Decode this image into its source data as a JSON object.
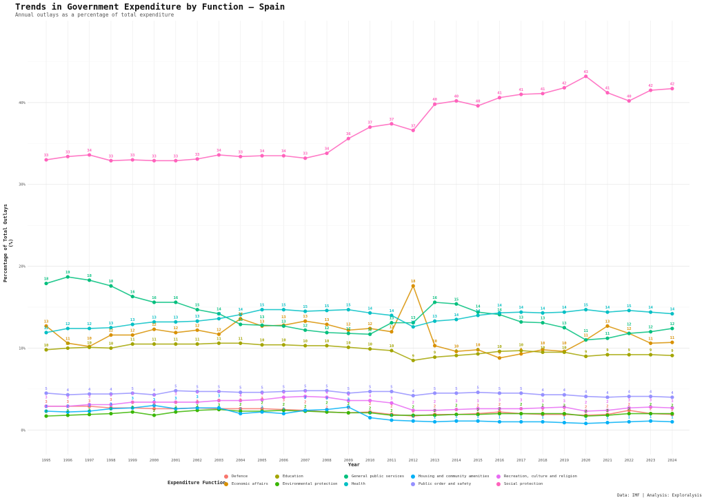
{
  "chart_data": {
    "type": "line",
    "title": "Trends in Government Expenditure by Function — Spain",
    "subtitle": "Annual outlays as a percentage of total expenditure",
    "xlabel": "Year",
    "ylabel": "Percentage of Total Outlays (%)",
    "caption": "Data: IMF | Analysis: Exploralysis",
    "legend_title": "Expenditure Function",
    "legend_position": "bottom",
    "ylim": [
      -3,
      50
    ],
    "yticks": [
      0,
      10,
      20,
      30,
      40
    ],
    "ytick_labels": [
      "0%",
      "10%",
      "20%",
      "30%",
      "40%"
    ],
    "x": [
      1995,
      1996,
      1997,
      1998,
      1999,
      2000,
      2001,
      2002,
      2003,
      2004,
      2005,
      2006,
      2007,
      2008,
      2009,
      2010,
      2011,
      2012,
      2013,
      2014,
      2015,
      2016,
      2017,
      2018,
      2019,
      2020,
      2021,
      2022,
      2023,
      2024
    ],
    "series": [
      {
        "name": "Defence",
        "color": "#f8766d",
        "values": [
          2.9,
          2.9,
          2.9,
          2.7,
          2.7,
          2.6,
          2.6,
          2.7,
          2.6,
          2.6,
          2.6,
          2.5,
          2.4,
          2.2,
          2.1,
          2.2,
          1.9,
          1.7,
          1.9,
          1.9,
          2.0,
          2.2,
          2.0,
          1.9,
          1.9,
          1.8,
          1.9,
          2.4,
          2.0,
          1.9
        ]
      },
      {
        "name": "Economic affairs",
        "color": "#d89000",
        "values": [
          12.7,
          10.6,
          10.2,
          11.6,
          11.6,
          12.3,
          11.9,
          12.2,
          11.7,
          13.6,
          12.7,
          12.8,
          13.3,
          12.9,
          12.2,
          12.4,
          12.0,
          17.6,
          10.3,
          9.6,
          9.8,
          8.8,
          9.3,
          9.8,
          9.6,
          11.0,
          12.7,
          11.8,
          10.6,
          10.7
        ]
      },
      {
        "name": "Education",
        "color": "#a3a500",
        "values": [
          9.8,
          10.0,
          10.1,
          10.0,
          10.5,
          10.5,
          10.5,
          10.5,
          10.6,
          10.6,
          10.4,
          10.4,
          10.3,
          10.3,
          10.1,
          9.9,
          9.7,
          8.5,
          8.9,
          9.1,
          9.3,
          9.6,
          9.7,
          9.5,
          9.5,
          9.0,
          9.2,
          9.2,
          9.2,
          9.1
        ]
      },
      {
        "name": "Environmental protection",
        "color": "#39b600",
        "values": [
          1.7,
          1.8,
          1.9,
          2.0,
          2.2,
          1.8,
          2.2,
          2.4,
          2.5,
          2.3,
          2.3,
          2.4,
          2.3,
          2.2,
          2.1,
          2.1,
          1.8,
          1.8,
          1.8,
          1.9,
          1.9,
          2.0,
          2.0,
          2.0,
          2.0,
          1.7,
          1.8,
          2.0,
          2.0,
          2.0
        ]
      },
      {
        "name": "General public services",
        "color": "#00bf7d",
        "values": [
          17.9,
          18.7,
          18.3,
          17.6,
          16.3,
          15.6,
          15.6,
          14.7,
          14.2,
          12.9,
          12.8,
          12.7,
          12.2,
          11.9,
          11.8,
          11.7,
          13.1,
          13.1,
          15.6,
          15.4,
          14.4,
          14.1,
          13.2,
          13.1,
          12.5,
          11.0,
          11.2,
          11.8,
          12.0,
          12.4
        ]
      },
      {
        "name": "Health",
        "color": "#00bfc4",
        "values": [
          11.9,
          12.4,
          12.4,
          12.5,
          12.9,
          13.2,
          13.2,
          13.3,
          13.6,
          14.1,
          14.7,
          14.7,
          14.5,
          14.6,
          14.7,
          14.3,
          14.0,
          12.6,
          13.3,
          13.5,
          14.0,
          14.3,
          14.4,
          14.3,
          14.4,
          14.7,
          14.4,
          14.6,
          14.4,
          14.2
        ]
      },
      {
        "name": "Housing and community amenities",
        "color": "#00b0f6",
        "values": [
          2.3,
          2.2,
          2.3,
          2.6,
          2.7,
          3.0,
          2.6,
          2.7,
          2.7,
          2.0,
          2.2,
          2.0,
          2.4,
          2.5,
          2.8,
          1.5,
          1.2,
          1.1,
          1.0,
          1.1,
          1.1,
          1.0,
          1.0,
          1.0,
          0.9,
          0.8,
          0.9,
          1.0,
          1.1,
          1.0
        ]
      },
      {
        "name": "Public order and safety",
        "color": "#9590ff",
        "values": [
          4.5,
          4.3,
          4.4,
          4.4,
          4.5,
          4.3,
          4.8,
          4.7,
          4.7,
          4.6,
          4.6,
          4.7,
          4.8,
          4.8,
          4.5,
          4.7,
          4.7,
          4.2,
          4.5,
          4.5,
          4.6,
          4.5,
          4.5,
          4.3,
          4.3,
          4.1,
          4.0,
          4.1,
          4.1,
          4.0
        ]
      },
      {
        "name": "Recreation, culture and religion",
        "color": "#e76bf3",
        "values": [
          2.9,
          2.9,
          3.1,
          3.1,
          3.4,
          3.4,
          3.4,
          3.4,
          3.6,
          3.6,
          3.7,
          4.0,
          4.1,
          4.0,
          3.6,
          3.6,
          3.3,
          2.4,
          2.4,
          2.5,
          2.6,
          2.6,
          2.6,
          2.7,
          2.8,
          2.3,
          2.4,
          2.7,
          2.8,
          2.7
        ]
      },
      {
        "name": "Social protection",
        "color": "#ff62bc",
        "values": [
          33.0,
          33.4,
          33.6,
          32.9,
          33.0,
          32.9,
          32.9,
          33.1,
          33.6,
          33.4,
          33.5,
          33.5,
          33.2,
          33.8,
          35.6,
          37.0,
          37.4,
          36.6,
          39.8,
          40.2,
          39.6,
          40.6,
          41.0,
          41.1,
          41.8,
          43.2,
          41.2,
          40.2,
          41.5,
          41.7
        ]
      }
    ]
  }
}
